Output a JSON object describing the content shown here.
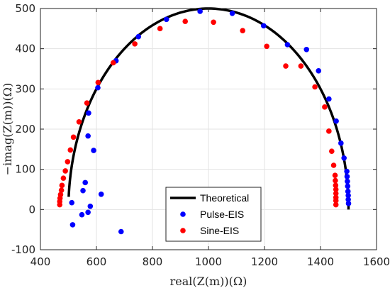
{
  "chart_data": {
    "type": "scatter",
    "xlabel": "real(Z(m))(Ω)",
    "ylabel": "−imag(Z(m))(Ω)",
    "xlim": [
      400,
      1600
    ],
    "ylim": [
      -100,
      500
    ],
    "xticks": [
      400,
      600,
      800,
      1000,
      1200,
      1400,
      1600
    ],
    "yticks": [
      -100,
      0,
      100,
      200,
      300,
      400,
      500
    ],
    "grid": true,
    "legend_position": "bottom-center",
    "series": [
      {
        "name": "Theoretical",
        "kind": "line",
        "color": "#000000",
        "shape": "semicircle",
        "center": [
          1000,
          0
        ],
        "radius": 500,
        "x_start": 501
      },
      {
        "name": "Pulse-EIS",
        "kind": "markers",
        "color": "#0000ff",
        "points": [
          [
            1500,
            15
          ],
          [
            1499,
            25
          ],
          [
            1499,
            35
          ],
          [
            1498,
            45
          ],
          [
            1497,
            58
          ],
          [
            1496,
            70
          ],
          [
            1495,
            82
          ],
          [
            1494,
            95
          ],
          [
            1484,
            128
          ],
          [
            1473,
            165
          ],
          [
            1456,
            220
          ],
          [
            1430,
            275
          ],
          [
            1393,
            345
          ],
          [
            1350,
            398
          ],
          [
            1282,
            410
          ],
          [
            1197,
            457
          ],
          [
            1085,
            488
          ],
          [
            970,
            493
          ],
          [
            850,
            473
          ],
          [
            750,
            430
          ],
          [
            670,
            370
          ],
          [
            605,
            303
          ],
          [
            572,
            240
          ],
          [
            570,
            183
          ],
          [
            590,
            147
          ],
          [
            560,
            67
          ],
          [
            552,
            47
          ],
          [
            617,
            38
          ],
          [
            578,
            8
          ],
          [
            570,
            -7
          ],
          [
            548,
            -13
          ],
          [
            512,
            17
          ],
          [
            515,
            -38
          ],
          [
            688,
            -55
          ]
        ]
      },
      {
        "name": "Sine-EIS",
        "kind": "markers",
        "color": "#ff0000",
        "points": [
          [
            1455,
            12
          ],
          [
            1455,
            22
          ],
          [
            1455,
            30
          ],
          [
            1455,
            40
          ],
          [
            1455,
            50
          ],
          [
            1454,
            60
          ],
          [
            1453,
            72
          ],
          [
            1452,
            85
          ],
          [
            1447,
            110
          ],
          [
            1440,
            145
          ],
          [
            1430,
            195
          ],
          [
            1415,
            255
          ],
          [
            1380,
            305
          ],
          [
            1330,
            357
          ],
          [
            1276,
            357
          ],
          [
            1208,
            406
          ],
          [
            1122,
            445
          ],
          [
            1018,
            466
          ],
          [
            917,
            468
          ],
          [
            827,
            450
          ],
          [
            737,
            412
          ],
          [
            660,
            365
          ],
          [
            606,
            316
          ],
          [
            566,
            265
          ],
          [
            538,
            218
          ],
          [
            518,
            180
          ],
          [
            507,
            148
          ],
          [
            497,
            119
          ],
          [
            489,
            96
          ],
          [
            482,
            78
          ],
          [
            477,
            60
          ],
          [
            475,
            48
          ],
          [
            472,
            37
          ],
          [
            470,
            28
          ],
          [
            469,
            20
          ],
          [
            469,
            12
          ]
        ]
      }
    ]
  }
}
